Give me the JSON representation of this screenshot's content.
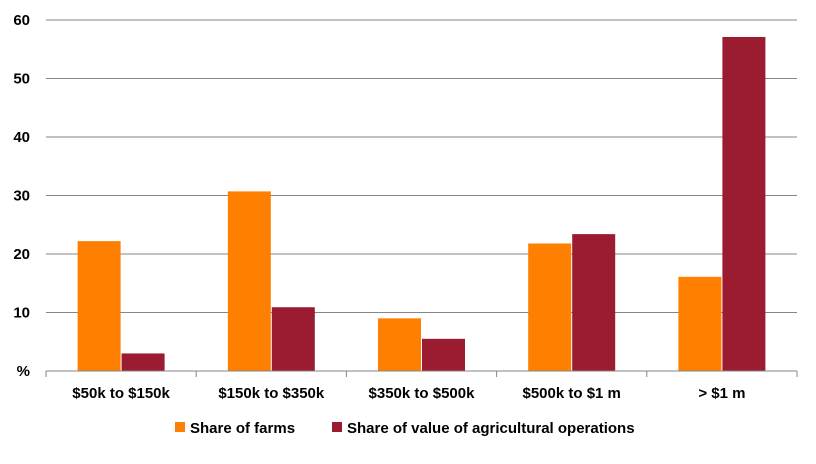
{
  "chart_data": {
    "type": "bar",
    "categories": [
      "$50k to $150k",
      "$150k to $350k",
      "$350k to $500k",
      "$500k to $1 m",
      "> $1 m"
    ],
    "series": [
      {
        "name": "Share of farms",
        "color": "#FF7F00",
        "values": [
          22.2,
          30.7,
          9.0,
          21.8,
          16.1
        ]
      },
      {
        "name": "Share of value of agricultural operations",
        "color": "#9B1B30",
        "values": [
          3.0,
          10.9,
          5.5,
          23.4,
          57.1
        ]
      }
    ],
    "ylim": [
      0,
      60
    ],
    "yticks": [
      0,
      10,
      20,
      30,
      40,
      50,
      60
    ],
    "ytick_labels": [
      "%",
      "10",
      "20",
      "30",
      "40",
      "50",
      "60"
    ],
    "grid": true,
    "legend_position": "bottom",
    "gridline_color": "#868686",
    "axis_color": "#868686"
  }
}
